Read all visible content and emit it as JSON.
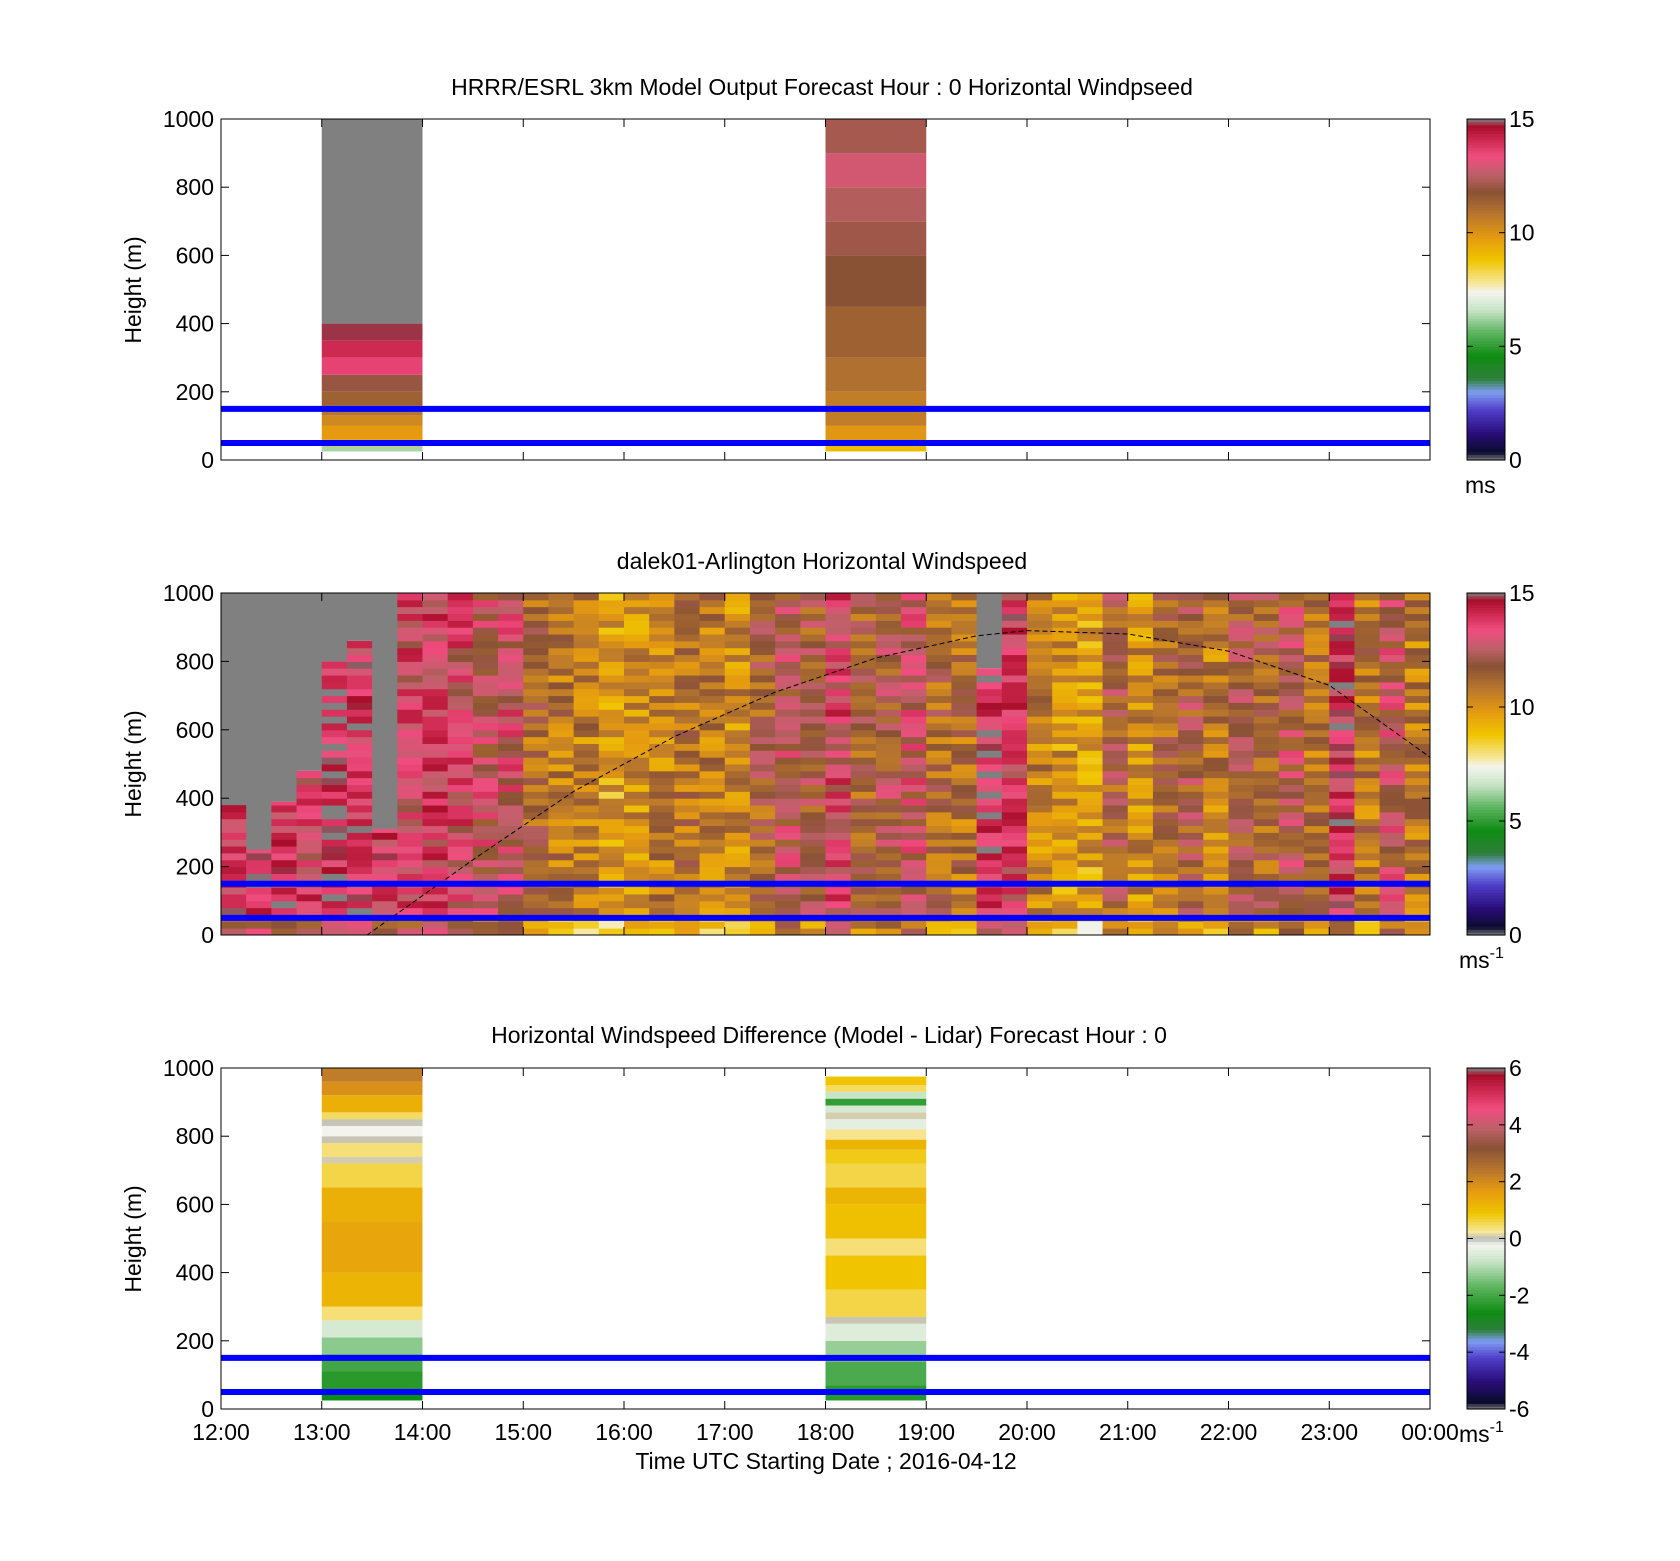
{
  "x_axis": {
    "ticks": [
      "12:00",
      "13:00",
      "14:00",
      "15:00",
      "16:00",
      "17:00",
      "18:00",
      "19:00",
      "20:00",
      "21:00",
      "22:00",
      "23:00",
      "00:00"
    ],
    "label": "Time UTC  Starting Date ; 2016-04-12"
  },
  "chart_data": [
    {
      "type": "heatmap",
      "title": "HRRR/ESRL 3km Model Output   Forecast Hour : 0 Horizontal Windpseed",
      "ylabel": "Height (m)",
      "yticks": [
        "0",
        "200",
        "400",
        "600",
        "800",
        "1000"
      ],
      "ylim": [
        0,
        1000
      ],
      "xlim": [
        12,
        24
      ],
      "colorbar": {
        "ticks": [
          "0",
          "5",
          "10",
          "15"
        ],
        "unit": "ms",
        "unit_sup": "",
        "range": [
          0,
          15
        ],
        "colormap": "speed"
      },
      "reference_lines_m": [
        50,
        150
      ],
      "columns": [
        {
          "x0": 13,
          "x1": 14,
          "bins": [
            {
              "y0": 25,
              "y1": 40,
              "v": 6.3
            },
            {
              "y0": 40,
              "y1": 60,
              "v": 9.3
            },
            {
              "y0": 60,
              "y1": 100,
              "v": 9.8
            },
            {
              "y0": 100,
              "y1": 130,
              "v": 10.3
            },
            {
              "y0": 130,
              "y1": 160,
              "v": 10.8
            },
            {
              "y0": 160,
              "y1": 200,
              "v": 11.4
            },
            {
              "y0": 200,
              "y1": 250,
              "v": 12.0
            },
            {
              "y0": 250,
              "y1": 300,
              "v": 13.6
            },
            {
              "y0": 300,
              "y1": 350,
              "v": 14.1
            },
            {
              "y0": 350,
              "y1": 400,
              "v": 14.8
            },
            {
              "y0": 400,
              "y1": 1000,
              "v": 15.5
            }
          ]
        },
        {
          "x0": 18,
          "x1": 19,
          "bins": [
            {
              "y0": 25,
              "y1": 50,
              "v": 9.0
            },
            {
              "y0": 50,
              "y1": 100,
              "v": 9.9
            },
            {
              "y0": 100,
              "y1": 200,
              "v": 10.6
            },
            {
              "y0": 200,
              "y1": 300,
              "v": 11.0
            },
            {
              "y0": 300,
              "y1": 450,
              "v": 11.4
            },
            {
              "y0": 450,
              "y1": 600,
              "v": 11.8
            },
            {
              "y0": 600,
              "y1": 700,
              "v": 12.1
            },
            {
              "y0": 700,
              "y1": 800,
              "v": 12.4
            },
            {
              "y0": 800,
              "y1": 900,
              "v": 12.9
            },
            {
              "y0": 900,
              "y1": 1000,
              "v": 12.2
            }
          ]
        }
      ]
    },
    {
      "type": "heatmap",
      "title": "dalek01-Arlington  Horizontal Windspeed",
      "ylabel": "Height (m)",
      "yticks": [
        "0",
        "200",
        "400",
        "600",
        "800",
        "1000"
      ],
      "ylim": [
        0,
        1000
      ],
      "xlim": [
        12,
        24
      ],
      "colorbar": {
        "ticks": [
          "0",
          "5",
          "10",
          "15"
        ],
        "unit": "ms",
        "unit_sup": "-1",
        "range": [
          0,
          15
        ],
        "colormap": "speed"
      },
      "reference_lines_m": [
        50,
        150
      ],
      "boundary_layer_curve": {
        "x": [
          13.45,
          14.5,
          15.5,
          16.5,
          17.5,
          18.5,
          19.5,
          20.0,
          21.0,
          22.0,
          23.0,
          24.0
        ],
        "y": [
          0,
          220,
          420,
          580,
          710,
          810,
          875,
          890,
          880,
          830,
          730,
          520
        ]
      },
      "columns": [
        {
          "x0": 12.0,
          "x1": 12.25,
          "gray_above": 380,
          "base": 13.6
        },
        {
          "x0": 12.25,
          "x1": 12.5,
          "gray_above": 250,
          "base": 14.0
        },
        {
          "x0": 12.5,
          "x1": 12.75,
          "gray_above": 390,
          "base": 13.8
        },
        {
          "x0": 12.75,
          "x1": 13.0,
          "gray_above": 480,
          "base": 13.4
        },
        {
          "x0": 13.0,
          "x1": 13.25,
          "gray_above": 800,
          "base": 14.4
        },
        {
          "x0": 13.25,
          "x1": 13.5,
          "gray_above": 860,
          "base": 13.9
        },
        {
          "x0": 13.5,
          "x1": 13.75,
          "gray_above": 310,
          "base": 13.7
        },
        {
          "x0": 13.75,
          "x1": 14.0,
          "base": 13.2
        },
        {
          "x0": 14.0,
          "x1": 14.25,
          "base": 13.5
        },
        {
          "x0": 14.25,
          "x1": 14.5,
          "base": 13.1
        },
        {
          "x0": 14.5,
          "x1": 14.75,
          "base": 12.6
        },
        {
          "x0": 14.75,
          "x1": 15.0,
          "base": 12.9
        },
        {
          "x0": 15.0,
          "x1": 15.25,
          "base": 11.2
        },
        {
          "x0": 15.25,
          "x1": 15.5,
          "base": 10.8
        },
        {
          "x0": 15.5,
          "x1": 15.75,
          "base": 10.5
        },
        {
          "x0": 15.75,
          "x1": 16.0,
          "base": 9.6
        },
        {
          "x0": 16.0,
          "x1": 16.25,
          "base": 10.1
        },
        {
          "x0": 16.25,
          "x1": 16.5,
          "base": 10.6
        },
        {
          "x0": 16.5,
          "x1": 16.75,
          "base": 11.0
        },
        {
          "x0": 16.75,
          "x1": 17.0,
          "base": 10.7
        },
        {
          "x0": 17.0,
          "x1": 17.25,
          "base": 10.3
        },
        {
          "x0": 17.25,
          "x1": 17.5,
          "base": 11.5
        },
        {
          "x0": 17.5,
          "x1": 17.75,
          "base": 12.4
        },
        {
          "x0": 17.75,
          "x1": 18.0,
          "base": 11.8
        },
        {
          "x0": 18.0,
          "x1": 18.25,
          "base": 13.3
        },
        {
          "x0": 18.25,
          "x1": 18.5,
          "base": 11.4
        },
        {
          "x0": 18.5,
          "x1": 18.75,
          "base": 12.0
        },
        {
          "x0": 18.75,
          "x1": 19.0,
          "base": 12.7
        },
        {
          "x0": 19.0,
          "x1": 19.25,
          "base": 11.3
        },
        {
          "x0": 19.25,
          "x1": 19.5,
          "base": 10.9
        },
        {
          "x0": 19.5,
          "x1": 19.75,
          "gray_above": 780,
          "base": 14.2
        },
        {
          "x0": 19.75,
          "x1": 20.0,
          "base": 13.6
        },
        {
          "x0": 20.0,
          "x1": 20.25,
          "base": 10.4
        },
        {
          "x0": 20.25,
          "x1": 20.5,
          "base": 10.0
        },
        {
          "x0": 20.5,
          "x1": 20.75,
          "base": 9.8
        },
        {
          "x0": 20.75,
          "x1": 21.0,
          "base": 11.6
        },
        {
          "x0": 21.0,
          "x1": 21.25,
          "base": 10.2
        },
        {
          "x0": 21.25,
          "x1": 21.5,
          "base": 11.1
        },
        {
          "x0": 21.5,
          "x1": 21.75,
          "base": 11.8
        },
        {
          "x0": 21.75,
          "x1": 22.0,
          "base": 10.6
        },
        {
          "x0": 22.0,
          "x1": 22.25,
          "base": 11.9
        },
        {
          "x0": 22.25,
          "x1": 22.5,
          "base": 11.4
        },
        {
          "x0": 22.5,
          "x1": 22.75,
          "base": 12.3
        },
        {
          "x0": 22.75,
          "x1": 23.0,
          "base": 11.0
        },
        {
          "x0": 23.0,
          "x1": 23.25,
          "base": 13.9
        },
        {
          "x0": 23.25,
          "x1": 23.5,
          "base": 10.8
        },
        {
          "x0": 23.5,
          "x1": 23.75,
          "base": 12.5
        },
        {
          "x0": 23.75,
          "x1": 24.0,
          "base": 10.7
        }
      ]
    },
    {
      "type": "heatmap",
      "title": "Horizontal Windspeed Difference (Model - Lidar) Forecast Hour : 0",
      "ylabel": "Height (m)",
      "yticks": [
        "0",
        "200",
        "400",
        "600",
        "800",
        "1000"
      ],
      "ylim": [
        0,
        1000
      ],
      "xlim": [
        12,
        24
      ],
      "colorbar": {
        "ticks": [
          "-6",
          "-4",
          "-2",
          "0",
          "2",
          "4",
          "6"
        ],
        "unit": "ms",
        "unit_sup": "-1",
        "range": [
          -6,
          6
        ],
        "colormap": "diff"
      },
      "reference_lines_m": [
        50,
        150
      ],
      "columns": [
        {
          "x0": 13,
          "x1": 14,
          "bins": [
            {
              "y0": 25,
              "y1": 60,
              "v": -2.6
            },
            {
              "y0": 60,
              "y1": 110,
              "v": -2.3
            },
            {
              "y0": 110,
              "y1": 160,
              "v": -2.0
            },
            {
              "y0": 160,
              "y1": 210,
              "v": -1.3
            },
            {
              "y0": 210,
              "y1": 260,
              "v": -0.6
            },
            {
              "y0": 260,
              "y1": 300,
              "v": 0.4
            },
            {
              "y0": 300,
              "y1": 400,
              "v": 1.2
            },
            {
              "y0": 400,
              "y1": 550,
              "v": 1.5
            },
            {
              "y0": 550,
              "y1": 650,
              "v": 1.3
            },
            {
              "y0": 650,
              "y1": 720,
              "v": 0.6
            },
            {
              "y0": 720,
              "y1": 740,
              "v": 0.1
            },
            {
              "y0": 740,
              "y1": 780,
              "v": 0.4
            },
            {
              "y0": 780,
              "y1": 800,
              "v": 0.05
            },
            {
              "y0": 800,
              "y1": 830,
              "v": -0.2
            },
            {
              "y0": 830,
              "y1": 850,
              "v": 0.05
            },
            {
              "y0": 850,
              "y1": 870,
              "v": 0.5
            },
            {
              "y0": 870,
              "y1": 920,
              "v": 1.3
            },
            {
              "y0": 920,
              "y1": 960,
              "v": 1.9
            },
            {
              "y0": 960,
              "y1": 1000,
              "v": 2.3
            }
          ]
        },
        {
          "x0": 18,
          "x1": 19,
          "bins": [
            {
              "y0": 25,
              "y1": 70,
              "v": -2.3
            },
            {
              "y0": 70,
              "y1": 140,
              "v": -1.9
            },
            {
              "y0": 140,
              "y1": 200,
              "v": -1.2
            },
            {
              "y0": 200,
              "y1": 250,
              "v": -0.5
            },
            {
              "y0": 250,
              "y1": 270,
              "v": 0.05
            },
            {
              "y0": 270,
              "y1": 350,
              "v": 0.6
            },
            {
              "y0": 350,
              "y1": 450,
              "v": 0.9
            },
            {
              "y0": 450,
              "y1": 500,
              "v": 0.4
            },
            {
              "y0": 500,
              "y1": 600,
              "v": 1.0
            },
            {
              "y0": 600,
              "y1": 650,
              "v": 1.2
            },
            {
              "y0": 650,
              "y1": 720,
              "v": 0.6
            },
            {
              "y0": 720,
              "y1": 760,
              "v": 0.8
            },
            {
              "y0": 760,
              "y1": 790,
              "v": 1.2
            },
            {
              "y0": 790,
              "y1": 820,
              "v": 0.3
            },
            {
              "y0": 820,
              "y1": 850,
              "v": -0.4
            },
            {
              "y0": 850,
              "y1": 870,
              "v": 0.1
            },
            {
              "y0": 870,
              "y1": 890,
              "v": -0.6
            },
            {
              "y0": 890,
              "y1": 910,
              "v": -2.2
            },
            {
              "y0": 910,
              "y1": 930,
              "v": -0.8
            },
            {
              "y0": 930,
              "y1": 950,
              "v": 0.5
            },
            {
              "y0": 950,
              "y1": 975,
              "v": 0.9
            }
          ]
        }
      ]
    }
  ]
}
